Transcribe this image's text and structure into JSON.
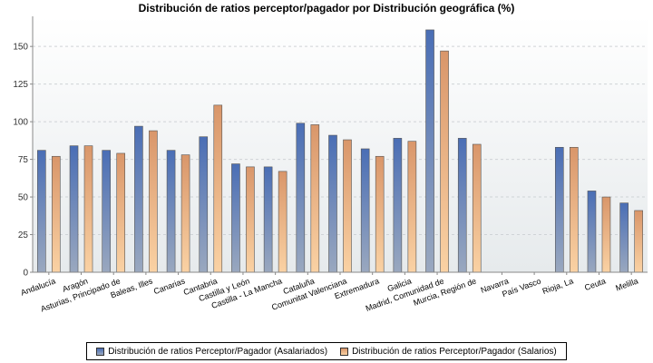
{
  "chart_data": {
    "type": "bar",
    "title": "Distribución de ratios perceptor/pagador por Distribución geográfica (%)",
    "categories": [
      "Andalucía",
      "Aragón",
      "Asturias, Principado de",
      "Baleas, Illes",
      "Canarias",
      "Cantabria",
      "Castilla y León",
      "Castilla - La Mancha",
      "Cataluña",
      "Comunitat Valenciana",
      "Extremadura",
      "Galicia",
      "Madrid, Comunidad de",
      "Murcia, Región de",
      "Navarra",
      "País Vasco",
      "Rioja, La",
      "Ceuta",
      "Melilla"
    ],
    "series": [
      {
        "name": "Distribución de ratios Perceptor/Pagador (Asalariados)",
        "color": "#4a6eb5",
        "values": [
          81,
          84,
          81,
          97,
          81,
          90,
          72,
          70,
          99,
          91,
          82,
          89,
          161,
          89,
          null,
          null,
          83,
          54,
          46
        ]
      },
      {
        "name": "Distribución de ratios Perceptor/Pagador (Salarios)",
        "color": "#e3a06c",
        "values": [
          77,
          84,
          79,
          94,
          78,
          111,
          70,
          67,
          98,
          88,
          77,
          87,
          147,
          85,
          null,
          null,
          83,
          50,
          41
        ]
      }
    ],
    "ylim": [
      0,
      170
    ],
    "yticks": [
      0,
      25,
      50,
      75,
      100,
      125,
      150
    ],
    "grid": true,
    "legend_position": "bottom"
  }
}
